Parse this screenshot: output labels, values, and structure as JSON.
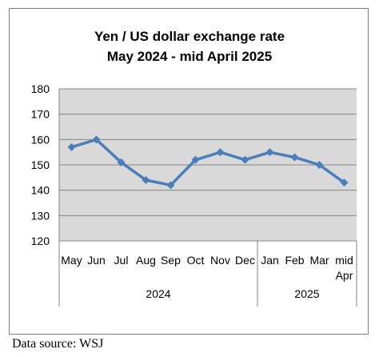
{
  "source_note": "Data source: WSJ",
  "chart_data": {
    "type": "line",
    "title": [
      "Yen / US dollar exchange rate",
      "May 2024  - mid April 2025"
    ],
    "xlabel": "",
    "ylabel": "",
    "categories": [
      "May",
      "Jun",
      "Jul",
      "Aug",
      "Sep",
      "Oct",
      "Nov",
      "Dec",
      "Jan",
      "Feb",
      "Mar",
      "mid Apr"
    ],
    "category_groups": [
      {
        "label": "2024",
        "count": 8
      },
      {
        "label": "2025",
        "count": 4
      }
    ],
    "series": [
      {
        "values": [
          157,
          160,
          151,
          144,
          142,
          152,
          155,
          152,
          155,
          153,
          150,
          143
        ]
      }
    ],
    "ylim": [
      120,
      180
    ],
    "yticks": [
      120,
      130,
      140,
      150,
      160,
      170,
      180
    ],
    "grid": true,
    "legend": "none",
    "colors": {
      "line": "#4a7ebb",
      "plot_bg": "#d9d9d9",
      "grid": "#868686"
    }
  }
}
